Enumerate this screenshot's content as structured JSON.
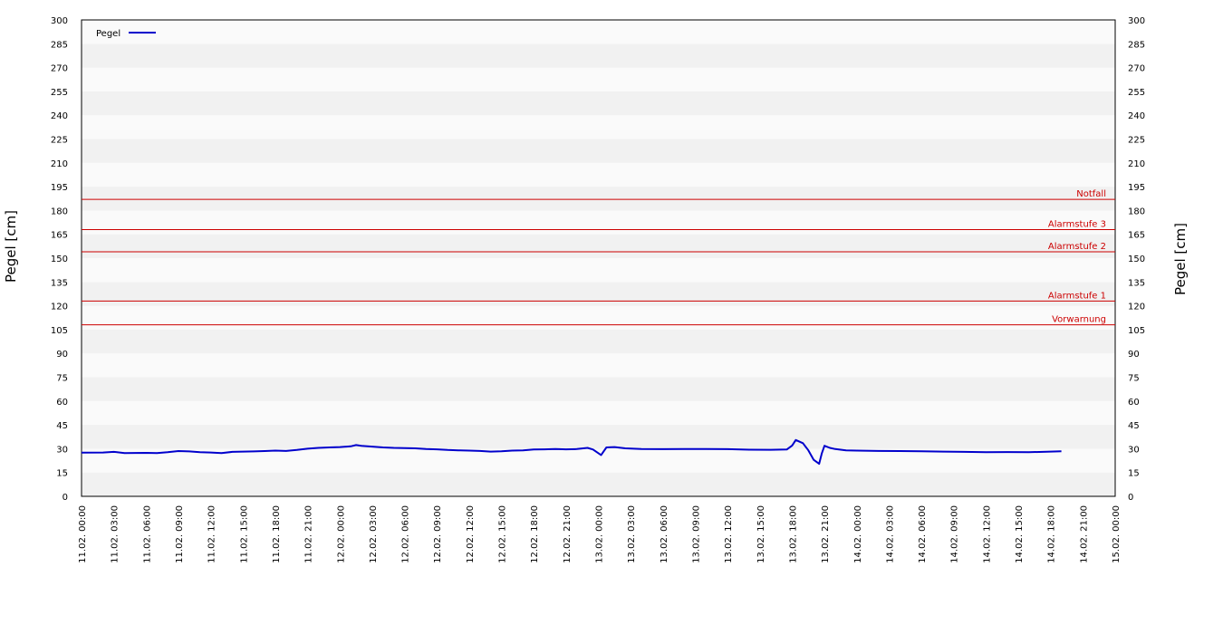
{
  "chart_data": {
    "type": "line",
    "ylabel_left": "Pegel [cm]",
    "ylabel_right": "Pegel [cm]",
    "ylim": [
      0,
      300
    ],
    "yticks": [
      0,
      15,
      30,
      45,
      60,
      75,
      90,
      105,
      120,
      135,
      150,
      165,
      180,
      195,
      210,
      225,
      240,
      255,
      270,
      285,
      300
    ],
    "xticks": [
      "11.02. 00:00",
      "11.02. 03:00",
      "11.02. 06:00",
      "11.02. 09:00",
      "11.02. 12:00",
      "11.02. 15:00",
      "11.02. 18:00",
      "11.02. 21:00",
      "12.02. 00:00",
      "12.02. 03:00",
      "12.02. 06:00",
      "12.02. 09:00",
      "12.02. 12:00",
      "12.02. 15:00",
      "12.02. 18:00",
      "12.02. 21:00",
      "13.02. 00:00",
      "13.02. 03:00",
      "13.02. 06:00",
      "13.02. 09:00",
      "13.02. 12:00",
      "13.02. 15:00",
      "13.02. 18:00",
      "13.02. 21:00",
      "14.02. 00:00",
      "14.02. 03:00",
      "14.02. 06:00",
      "14.02. 09:00",
      "14.02. 12:00",
      "14.02. 15:00",
      "14.02. 18:00",
      "14.02. 21:00",
      "15.02. 00:00"
    ],
    "xlim": [
      "11.02. 00:00",
      "15.02. 00:00"
    ],
    "grid": "horizontal bands",
    "legend": {
      "placement": "top-left",
      "entries": [
        {
          "label": "Pegel",
          "color": "#0000cc"
        }
      ]
    },
    "thresholds": [
      {
        "label": "Notfall",
        "value": 187,
        "color": "#cc0000"
      },
      {
        "label": "Alarmstufe 3",
        "value": 168,
        "color": "#cc0000"
      },
      {
        "label": "Alarmstufe 2",
        "value": 154,
        "color": "#cc0000"
      },
      {
        "label": "Alarmstufe 1",
        "value": 123,
        "color": "#cc0000"
      },
      {
        "label": "Vorwarnung",
        "value": 108,
        "color": "#cc0000"
      }
    ],
    "series": [
      {
        "name": "Pegel",
        "color": "#0000cc",
        "points": [
          [
            "11.02. 00:00",
            27.5
          ],
          [
            "11.02. 02:00",
            27.6
          ],
          [
            "11.02. 03:00",
            28.0
          ],
          [
            "11.02. 04:00",
            27.2
          ],
          [
            "11.02. 06:00",
            27.4
          ],
          [
            "11.02. 07:00",
            27.2
          ],
          [
            "11.02. 08:00",
            27.8
          ],
          [
            "11.02. 09:00",
            28.5
          ],
          [
            "11.02. 10:00",
            28.3
          ],
          [
            "11.02. 11:00",
            27.8
          ],
          [
            "11.02. 12:00",
            27.6
          ],
          [
            "11.02. 13:00",
            27.2
          ],
          [
            "11.02. 14:00",
            28.0
          ],
          [
            "11.02. 15:00",
            28.2
          ],
          [
            "11.02. 16:00",
            28.3
          ],
          [
            "11.02. 17:00",
            28.5
          ],
          [
            "11.02. 18:00",
            28.8
          ],
          [
            "11.02. 19:00",
            28.6
          ],
          [
            "11.02. 20:00",
            29.2
          ],
          [
            "11.02. 21:00",
            30.0
          ],
          [
            "11.02. 22:00",
            30.5
          ],
          [
            "11.02. 23:00",
            30.8
          ],
          [
            "12.02. 00:00",
            31.0
          ],
          [
            "12.02. 01:00",
            31.5
          ],
          [
            "12.02. 01:30",
            32.3
          ],
          [
            "12.02. 02:00",
            31.8
          ],
          [
            "12.02. 03:00",
            31.3
          ],
          [
            "12.02. 04:00",
            30.8
          ],
          [
            "12.02. 05:00",
            30.5
          ],
          [
            "12.02. 06:00",
            30.4
          ],
          [
            "12.02. 07:00",
            30.2
          ],
          [
            "12.02. 08:00",
            29.8
          ],
          [
            "12.02. 09:00",
            29.6
          ],
          [
            "12.02. 10:00",
            29.2
          ],
          [
            "12.02. 11:00",
            29.0
          ],
          [
            "12.02. 12:00",
            28.8
          ],
          [
            "12.02. 13:00",
            28.6
          ],
          [
            "12.02. 14:00",
            28.2
          ],
          [
            "12.02. 15:00",
            28.4
          ],
          [
            "12.02. 16:00",
            28.8
          ],
          [
            "12.02. 17:00",
            29.0
          ],
          [
            "12.02. 18:00",
            29.5
          ],
          [
            "12.02. 19:00",
            29.6
          ],
          [
            "12.02. 20:00",
            29.8
          ],
          [
            "12.02. 21:00",
            29.6
          ],
          [
            "12.02. 22:00",
            29.8
          ],
          [
            "12.02. 23:00",
            30.5
          ],
          [
            "12.02. 23:30",
            29.5
          ],
          [
            "13.02. 00:15",
            26.0
          ],
          [
            "13.02. 00:45",
            30.8
          ],
          [
            "13.02. 01:30",
            31.0
          ],
          [
            "13.02. 02:30",
            30.2
          ],
          [
            "13.02. 04:00",
            29.8
          ],
          [
            "13.02. 06:00",
            29.7
          ],
          [
            "13.02. 08:00",
            29.8
          ],
          [
            "13.02. 10:00",
            29.8
          ],
          [
            "13.02. 12:00",
            29.7
          ],
          [
            "13.02. 14:00",
            29.4
          ],
          [
            "13.02. 16:00",
            29.3
          ],
          [
            "13.02. 17:30",
            29.5
          ],
          [
            "13.02. 18:00",
            32.0
          ],
          [
            "13.02. 18:20",
            35.5
          ],
          [
            "13.02. 19:00",
            33.5
          ],
          [
            "13.02. 19:30",
            29.0
          ],
          [
            "13.02. 20:00",
            23.0
          ],
          [
            "13.02. 20:30",
            20.5
          ],
          [
            "13.02. 20:45",
            27.0
          ],
          [
            "13.02. 21:00",
            31.8
          ],
          [
            "13.02. 21:30",
            30.5
          ],
          [
            "13.02. 22:00",
            29.8
          ],
          [
            "13.02. 23:00",
            29.0
          ],
          [
            "14.02. 00:00",
            28.8
          ],
          [
            "14.02. 02:00",
            28.6
          ],
          [
            "14.02. 04:00",
            28.5
          ],
          [
            "14.02. 06:00",
            28.4
          ],
          [
            "14.02. 08:00",
            28.2
          ],
          [
            "14.02. 10:00",
            28.0
          ],
          [
            "14.02. 12:00",
            27.8
          ],
          [
            "14.02. 14:00",
            27.9
          ],
          [
            "14.02. 16:00",
            27.8
          ],
          [
            "14.02. 18:00",
            28.2
          ],
          [
            "14.02. 19:00",
            28.4
          ]
        ]
      }
    ]
  }
}
